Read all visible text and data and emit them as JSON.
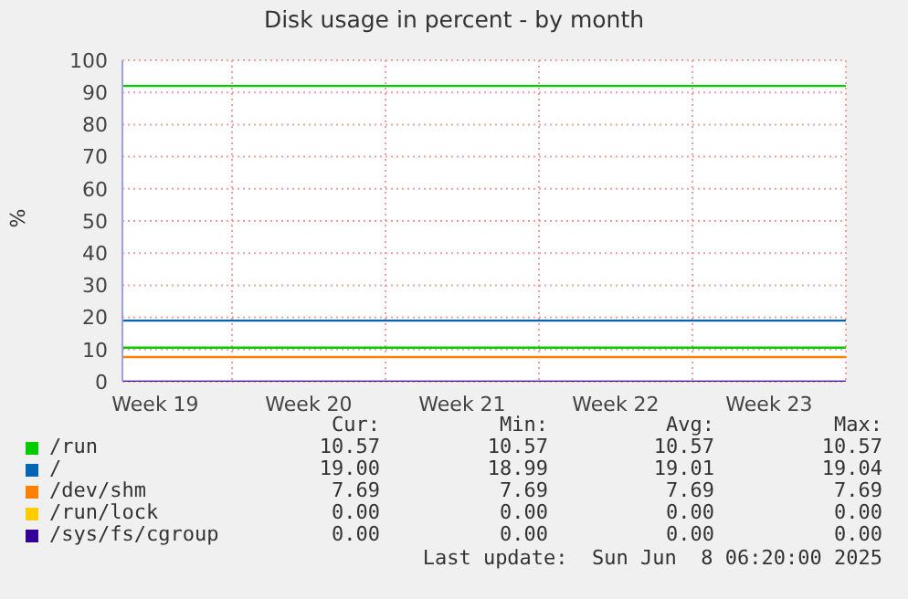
{
  "chart_data": {
    "type": "line",
    "title": "Disk usage in percent - by month",
    "ylabel": "%",
    "xlim": [
      "2025-05-07",
      "2025-06-09"
    ],
    "xticks": [
      {
        "value": "2025-05-08T12:00",
        "label": "Week 19"
      },
      {
        "value": "2025-05-12",
        "label": null
      },
      {
        "value": "2025-05-15T12:00",
        "label": "Week 20"
      },
      {
        "value": "2025-05-19",
        "label": null
      },
      {
        "value": "2025-05-22T12:00",
        "label": "Week 21"
      },
      {
        "value": "2025-05-26",
        "label": null
      },
      {
        "value": "2025-05-29T12:00",
        "label": "Week 22"
      },
      {
        "value": "2025-06-02",
        "label": null
      },
      {
        "value": "2025-06-05T12:00",
        "label": "Week 23"
      },
      {
        "value": "2025-06-09",
        "label": null
      }
    ],
    "ylim": [
      0,
      100
    ],
    "yticks": [
      0,
      10,
      20,
      30,
      40,
      50,
      60,
      70,
      80,
      90,
      100
    ],
    "x": [
      "2025-05-07",
      "2025-06-09"
    ],
    "series": [
      {
        "name": "/run",
        "color": "#00cc00",
        "values": [
          10.57,
          10.57
        ]
      },
      {
        "name": "/",
        "color": "#0066b3",
        "values": [
          19.0,
          19.0
        ]
      },
      {
        "name": "/dev/shm",
        "color": "#ff8000",
        "values": [
          7.69,
          7.69
        ]
      },
      {
        "name": "/run/lock",
        "color": "#ffcc00",
        "values": [
          null,
          null
        ]
      },
      {
        "name": "/sys/fs/cgroup",
        "color": "#330099",
        "values": [
          0,
          0
        ]
      }
    ],
    "ref_lines": [
      {
        "axis": "y",
        "value": 92,
        "label": null,
        "color": "#00cc00"
      }
    ],
    "grid": true,
    "legend": "bottom",
    "marker": "none",
    "line_style": "solid",
    "annotations": [
      "Cur:",
      "Min:",
      "Avg:",
      "Max:",
      "10.57",
      "10.57",
      "10.57",
      "10.57",
      "19.00",
      "18.99",
      "19.01",
      "19.04",
      "7.69",
      "7.69",
      "7.69",
      "7.69",
      "0.00",
      "0.00",
      "0.00",
      "0.00",
      "0.00",
      "0.00",
      "0.00",
      "0.00",
      "Last update:  Sun Jun  8 06:20:00 2025"
    ]
  }
}
